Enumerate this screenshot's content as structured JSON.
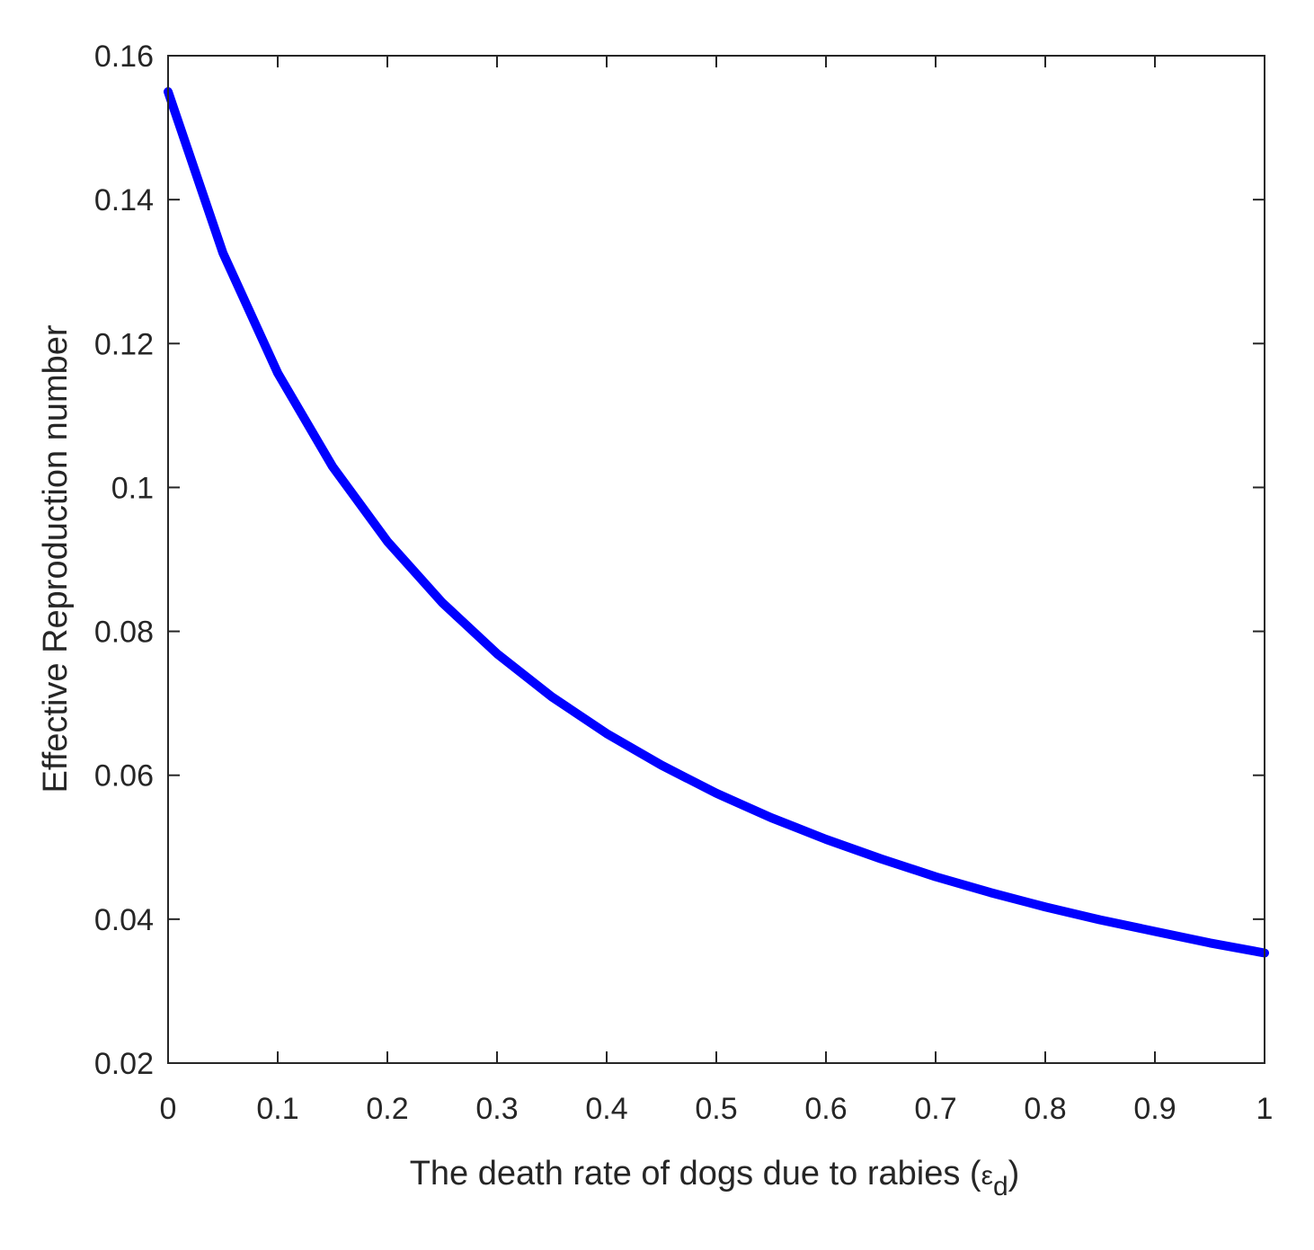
{
  "chart_data": {
    "type": "line",
    "title": "",
    "xlabel": "The death rate of dogs due to rabies  (",
    "xlabel_symbol": "ε",
    "xlabel_subscript": "d",
    "xlabel_close": ")",
    "ylabel": "Effective Reproduction number",
    "xlim": [
      0,
      1
    ],
    "ylim": [
      0.02,
      0.16
    ],
    "x_ticks": [
      0,
      0.1,
      0.2,
      0.3,
      0.4,
      0.5,
      0.6,
      0.7,
      0.8,
      0.9,
      1
    ],
    "x_tick_labels": [
      "0",
      "0.1",
      "0.2",
      "0.3",
      "0.4",
      "0.5",
      "0.6",
      "0.7",
      "0.8",
      "0.9",
      "1"
    ],
    "y_ticks": [
      0.02,
      0.04,
      0.06,
      0.08,
      0.1,
      0.12,
      0.14,
      0.16
    ],
    "y_tick_labels": [
      "0.02",
      "0.04",
      "0.06",
      "0.08",
      "0.1",
      "0.12",
      "0.14",
      "0.16"
    ],
    "grid": false,
    "line_color": "#0000ff",
    "axis_color": "#262626",
    "series": [
      {
        "x": [
          0,
          0.05,
          0.1,
          0.15,
          0.2,
          0.25,
          0.3,
          0.35,
          0.4,
          0.45,
          0.5,
          0.55,
          0.6,
          0.65,
          0.7,
          0.75,
          0.8,
          0.85,
          0.9,
          0.95,
          1
        ],
        "y": [
          0.155,
          0.1326,
          0.1159,
          0.1029,
          0.0925,
          0.084,
          0.0769,
          0.0709,
          0.0658,
          0.0614,
          0.0575,
          0.0541,
          0.0511,
          0.0484,
          0.0459,
          0.0437,
          0.0417,
          0.0399,
          0.0383,
          0.0367,
          0.0353
        ]
      }
    ]
  }
}
